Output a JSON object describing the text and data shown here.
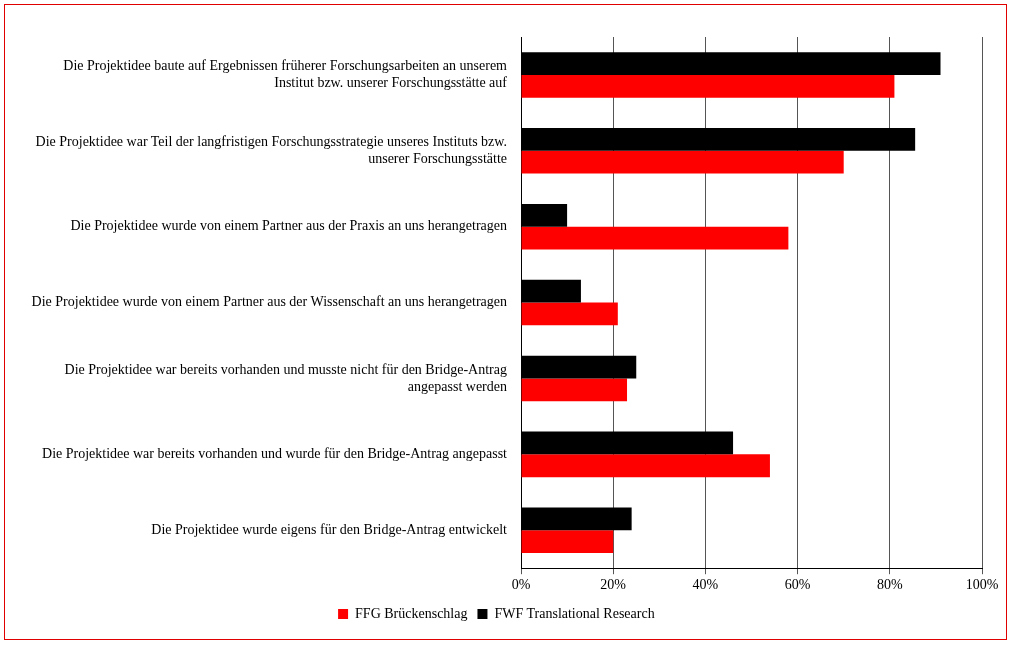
{
  "chart_data": {
    "type": "bar",
    "orientation": "horizontal",
    "categories": [
      "Die Projektidee baute auf Ergebnissen früherer Forschungsarbeiten an unserem Institut bzw. unserer Forschungsstätte auf",
      "Die Projektidee war Teil der langfristigen Forschungsstrategie unseres Instituts bzw. unserer Forschungsstätte",
      "Die Projektidee wurde von einem Partner aus der Praxis an uns herangetragen",
      "Die Projektidee wurde von einem Partner aus der Wissenschaft an uns herangetragen",
      "Die Projektidee war bereits vorhanden und musste nicht für den Bridge-Antrag angepasst werden",
      "Die Projektidee war bereits vorhanden und wurde für den Bridge-Antrag angepasst",
      "Die Projektidee wurde eigens für den Bridge-Antrag entwickelt"
    ],
    "series": [
      {
        "name": "FFG Brückenschlag",
        "color": "#ff0000",
        "values": [
          81,
          70,
          58,
          21,
          23,
          54,
          20
        ]
      },
      {
        "name": "FWF Translational Research",
        "color": "#000000",
        "values": [
          91,
          85.5,
          10,
          13,
          25,
          46,
          24
        ]
      }
    ],
    "xlim": [
      0,
      100
    ],
    "xticks": [
      {
        "value": 0,
        "label": "0%"
      },
      {
        "value": 20,
        "label": "20%"
      },
      {
        "value": 40,
        "label": "40%"
      },
      {
        "value": 60,
        "label": "60%"
      },
      {
        "value": 80,
        "label": "80%"
      },
      {
        "value": 100,
        "label": "100%"
      }
    ],
    "grid": "x",
    "legend": "bottom"
  }
}
